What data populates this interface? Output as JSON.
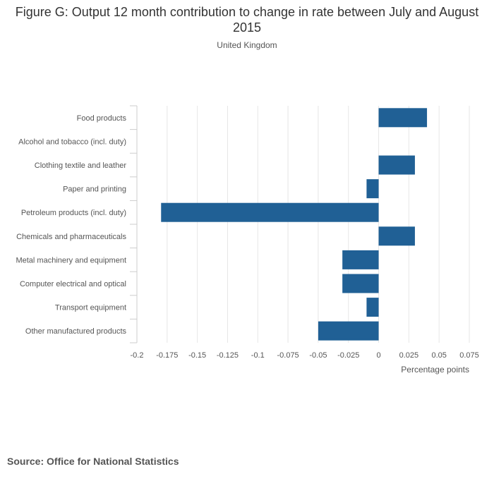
{
  "chart_data": {
    "type": "bar",
    "orientation": "horizontal",
    "title": "Figure G: Output 12 month contribution to change in rate between July and August 2015",
    "subtitle": "United Kingdom",
    "xlabel": "Percentage points",
    "ylabel": "",
    "xlim": [
      -0.2,
      0.075
    ],
    "xticks": [
      -0.2,
      -0.175,
      -0.15,
      -0.125,
      -0.1,
      -0.075,
      -0.05,
      -0.025,
      0,
      0.025,
      0.05,
      0.075
    ],
    "xtick_labels": [
      "-0.2",
      "-0.175",
      "-0.15",
      "-0.125",
      "-0.1",
      "-0.075",
      "-0.05",
      "-0.025",
      "0",
      "0.025",
      "0.05",
      "0.075"
    ],
    "categories": [
      "Food products",
      "Alcohol and tobacco (incl. duty)",
      "Clothing textile and leather",
      "Paper and printing",
      "Petroleum products (incl. duty)",
      "Chemicals and pharmaceuticals",
      "Metal machinery and equipment",
      "Computer electrical and optical",
      "Transport equipment",
      "Other manufactured products"
    ],
    "values": [
      0.04,
      0,
      0.03,
      -0.01,
      -0.18,
      0.03,
      -0.03,
      -0.03,
      -0.01,
      -0.05
    ],
    "bar_color": "#206095",
    "grid": true
  },
  "source": "Source: Office for National Statistics"
}
